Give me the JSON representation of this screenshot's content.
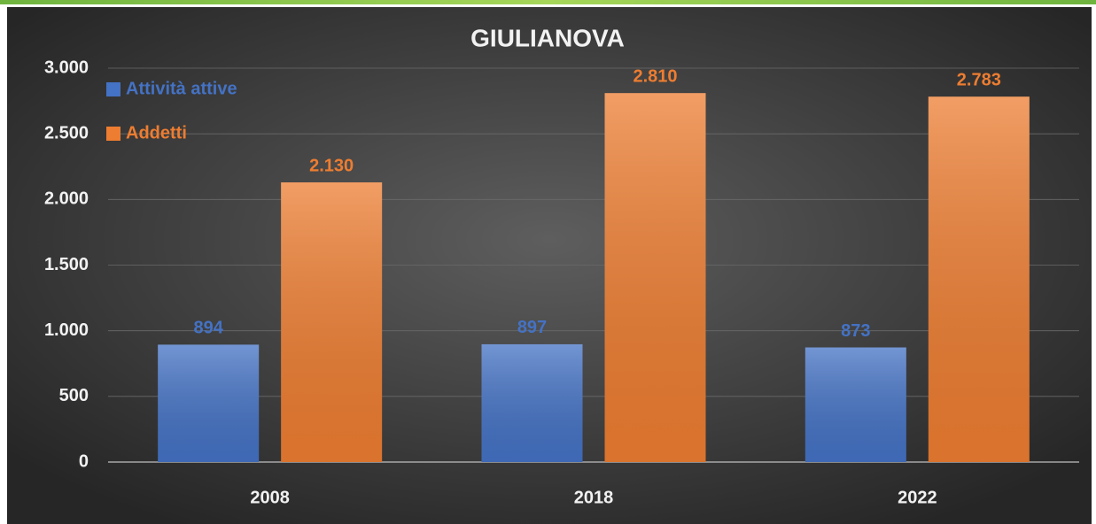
{
  "chart_data": {
    "type": "bar",
    "title": "GIULIANOVA",
    "categories": [
      "2008",
      "2018",
      "2022"
    ],
    "series": [
      {
        "name": "Attività attive",
        "color": "#4472c4",
        "values": [
          894,
          897,
          873
        ]
      },
      {
        "name": "Addetti",
        "color": "#ed7d31",
        "values": [
          2130,
          2810,
          2783
        ],
        "value_labels": [
          "2.130",
          "2.810",
          "2.783"
        ]
      }
    ],
    "ylim": [
      0,
      3000
    ],
    "yticks": [
      0,
      500,
      {
        "value": 1000,
        "label": "1.000"
      },
      {
        "value": 1500,
        "label": "1.500"
      },
      {
        "value": 2000,
        "label": "2.000"
      },
      {
        "value": 2500,
        "label": "2.500"
      },
      {
        "value": 3000,
        "label": "3.000"
      }
    ],
    "grid": true,
    "legend": "top-left"
  }
}
